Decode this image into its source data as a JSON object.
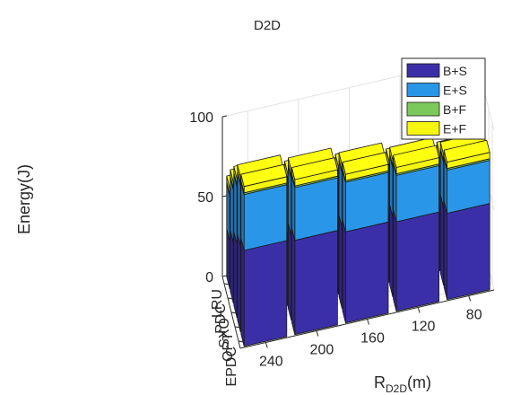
{
  "chart_data": {
    "type": "bar",
    "variant": "stacked-3d",
    "title": "D2D",
    "ylabel": "Energy(J)",
    "xlabel": {
      "base": "R",
      "subscript": "D2D",
      "suffix": "(m)"
    },
    "zlim": [
      0,
      100
    ],
    "z_ticks": [
      "0",
      "50",
      "100"
    ],
    "grid": true,
    "legend_position": "top-right",
    "algorithms": [
      "EPDC",
      "OPT",
      "SXO",
      "PDC",
      "LRU"
    ],
    "radii": [
      "240",
      "200",
      "160",
      "120",
      "80"
    ],
    "series": [
      {
        "name": "B+S",
        "color": "#3b2fa8",
        "values": [
          [
            60,
            59,
            57,
            56,
            54
          ],
          [
            54,
            53,
            51,
            50,
            49
          ],
          [
            46,
            44,
            42,
            40,
            38
          ],
          [
            38,
            35,
            33,
            30,
            28
          ],
          [
            30,
            28,
            26,
            23,
            20
          ]
        ]
      },
      {
        "name": "E+S",
        "color": "#2a96e8",
        "values": [
          [
            35,
            33,
            31,
            29,
            27
          ],
          [
            38,
            36,
            34,
            31,
            28
          ],
          [
            36,
            34,
            33,
            31,
            30
          ],
          [
            33,
            31,
            30,
            28,
            26
          ],
          [
            28,
            27,
            26,
            24,
            23
          ]
        ]
      },
      {
        "name": "B+F",
        "color": "#7cc95b",
        "values": [
          [
            1,
            1,
            1,
            1,
            1
          ],
          [
            1,
            1,
            1,
            1,
            1
          ],
          [
            1,
            1,
            1,
            1,
            1
          ],
          [
            1,
            1,
            1,
            1,
            1
          ],
          [
            1,
            1,
            1,
            1,
            1
          ]
        ]
      },
      {
        "name": "E+F",
        "color": "#f5f50f",
        "values": [
          [
            4,
            4,
            4,
            4,
            4
          ],
          [
            4,
            4,
            4,
            4,
            4
          ],
          [
            4,
            4,
            4,
            4,
            4
          ],
          [
            4,
            4,
            4,
            4,
            4
          ],
          [
            4,
            4,
            4,
            4,
            4
          ]
        ]
      }
    ]
  }
}
